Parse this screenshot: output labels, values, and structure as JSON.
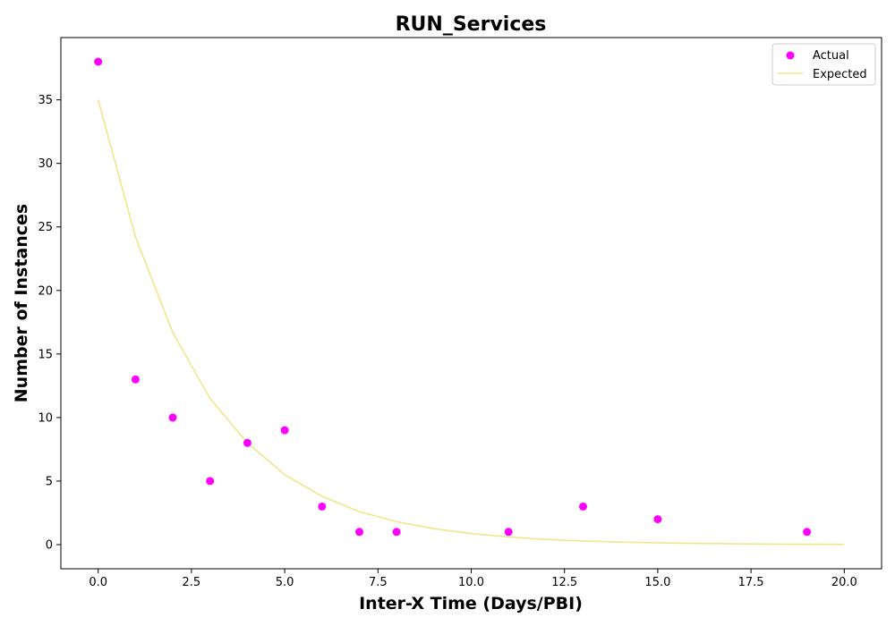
{
  "chart_data": {
    "type": "scatter",
    "title": "RUN_Services",
    "xlabel": "Inter-X Time (Days/PBI)",
    "ylabel": "Number of Instances",
    "xlim": [
      -1,
      21
    ],
    "ylim": [
      -1.9,
      39.9
    ],
    "xticks": [
      0.0,
      2.5,
      5.0,
      7.5,
      10.0,
      12.5,
      15.0,
      17.5,
      20.0
    ],
    "xtick_labels": [
      "0.0",
      "2.5",
      "5.0",
      "7.5",
      "10.0",
      "12.5",
      "15.0",
      "17.5",
      "20.0"
    ],
    "yticks": [
      0,
      5,
      10,
      15,
      20,
      25,
      30,
      35
    ],
    "ytick_labels": [
      "0",
      "5",
      "10",
      "15",
      "20",
      "25",
      "30",
      "35"
    ],
    "grid": false,
    "legend": "top-right",
    "series": [
      {
        "name": "Actual",
        "kind": "scatter",
        "color": "#ff00ff",
        "x": [
          0,
          1,
          2,
          3,
          4,
          5,
          6,
          7,
          8,
          11,
          13,
          15,
          19
        ],
        "y": [
          38,
          13,
          10,
          5,
          8,
          9,
          3,
          1,
          1,
          1,
          3,
          2,
          1
        ]
      },
      {
        "name": "Expected",
        "kind": "line",
        "color": "#f0e68c",
        "x": [
          0,
          1,
          2,
          3,
          4,
          5,
          6,
          7,
          8,
          9,
          10,
          11,
          12,
          13,
          14,
          15,
          16,
          17,
          18,
          19,
          20
        ],
        "y": [
          35.0,
          24.2,
          16.7,
          11.5,
          8.0,
          5.5,
          3.8,
          2.6,
          1.8,
          1.25,
          0.87,
          0.6,
          0.41,
          0.29,
          0.2,
          0.14,
          0.095,
          0.066,
          0.045,
          0.031,
          0.022
        ]
      }
    ]
  }
}
